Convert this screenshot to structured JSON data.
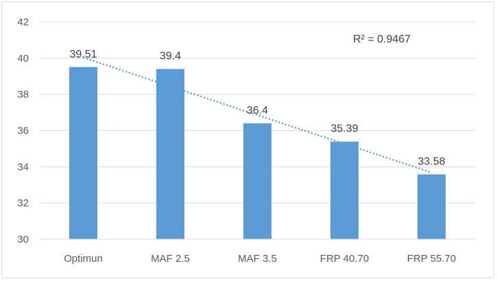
{
  "chart_data": {
    "type": "bar",
    "categories": [
      "Optimun",
      "MAF 2.5",
      "MAF 3.5",
      "FRP 40.70",
      "FRP 55.70"
    ],
    "values": [
      39.51,
      39.4,
      36.4,
      35.39,
      33.58
    ],
    "data_labels": [
      "39.51",
      "39.4",
      "36.4",
      "35.39",
      "33.58"
    ],
    "ylim": [
      30,
      42
    ],
    "yticks": [
      "30",
      "32",
      "34",
      "36",
      "38",
      "40",
      "42"
    ],
    "grid": true,
    "trendline": {
      "type": "linear",
      "style": "dotted",
      "r2_label": "R² = 0.9467"
    },
    "colors": {
      "bar": "#5b9bd5",
      "trendline": "#5b9bd5",
      "grid": "#d9d9d9"
    }
  }
}
